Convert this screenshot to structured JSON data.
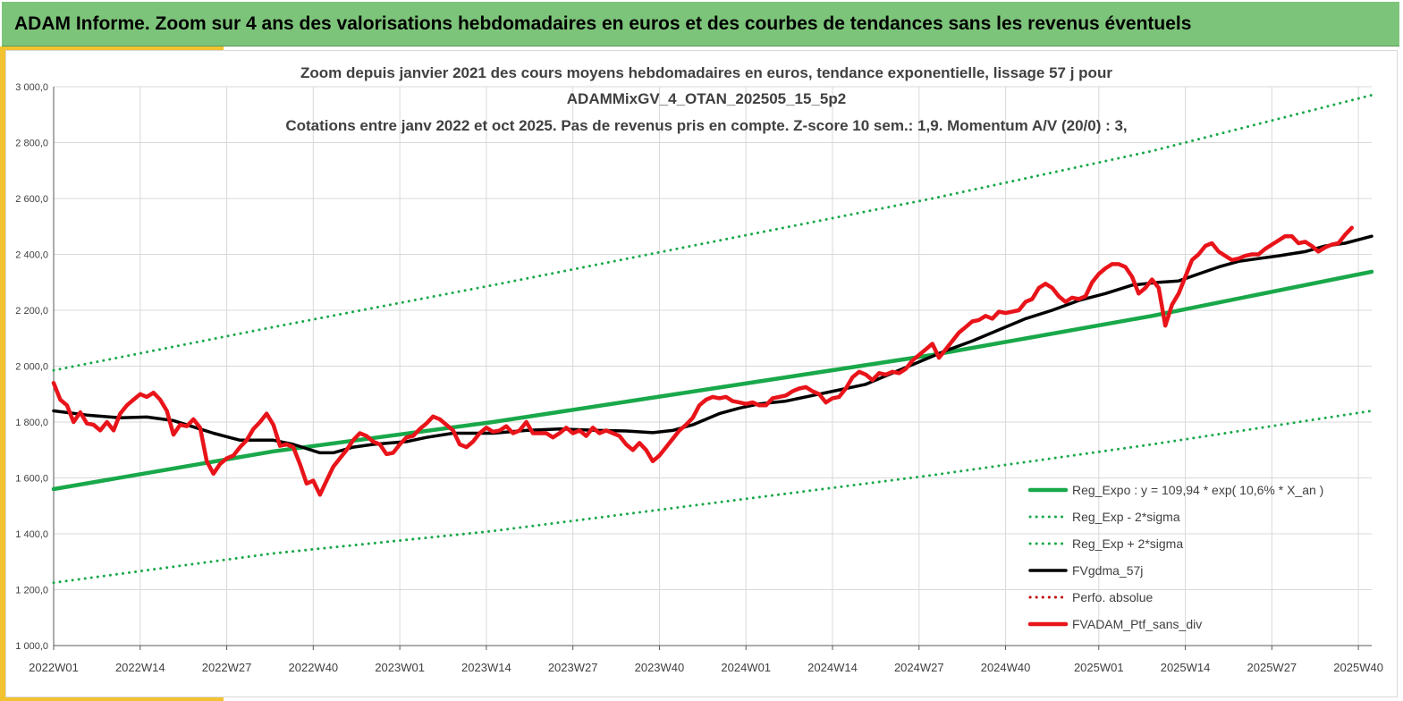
{
  "banner": {
    "title": "ADAM Informe. Zoom sur 4 ans des valorisations hebdomadaires en euros et des courbes de tendances sans les revenus éventuels"
  },
  "colors": {
    "banner_bg": "#7cc47a",
    "accent": "#f2c230",
    "trend_green": "#19a84a",
    "ma_black": "#000000",
    "price_red": "#e8141a",
    "grid": "#d9d9d9"
  },
  "chart_data": {
    "type": "line",
    "title_lines": [
      "Zoom depuis janvier 2021 des cours moyens hebdomadaires  en euros, tendance exponentielle, lissage 57 j pour",
      "ADAMMixGV_4_OTAN_202505_15_5p2",
      "Cotations entre janv 2022 et oct 2025. Pas de revenus pris en compte. Z-score 10 sem.: 1,9. Momentum A/V (20/0) : 3,"
    ],
    "ylim": [
      1000,
      3000
    ],
    "yticks": [
      {
        "value": 1000,
        "label": "1 000,0"
      },
      {
        "value": 1200,
        "label": "1 200,0"
      },
      {
        "value": 1400,
        "label": "1 400,0"
      },
      {
        "value": 1600,
        "label": "1 600,0"
      },
      {
        "value": 1800,
        "label": "1 800,0"
      },
      {
        "value": 2000,
        "label": "2 000,0"
      },
      {
        "value": 2200,
        "label": "2 200,0"
      },
      {
        "value": 2400,
        "label": "2 400,0"
      },
      {
        "value": 2600,
        "label": "2 600,0"
      },
      {
        "value": 2800,
        "label": "2 800,0"
      },
      {
        "value": 3000,
        "label": "3 000,0"
      }
    ],
    "xlim": [
      0,
      198
    ],
    "xticks": [
      {
        "week": 0,
        "label": "2022W01"
      },
      {
        "week": 13,
        "label": "2022W14"
      },
      {
        "week": 26,
        "label": "2022W27"
      },
      {
        "week": 39,
        "label": "2022W40"
      },
      {
        "week": 52,
        "label": "2023W01"
      },
      {
        "week": 65,
        "label": "2023W14"
      },
      {
        "week": 78,
        "label": "2023W27"
      },
      {
        "week": 91,
        "label": "2023W40"
      },
      {
        "week": 104,
        "label": "2024W01"
      },
      {
        "week": 117,
        "label": "2024W14"
      },
      {
        "week": 130,
        "label": "2024W27"
      },
      {
        "week": 143,
        "label": "2024W40"
      },
      {
        "week": 157,
        "label": "2025W01"
      },
      {
        "week": 170,
        "label": "2025W14"
      },
      {
        "week": 183,
        "label": "2025W27"
      },
      {
        "week": 196,
        "label": "2025W40"
      }
    ],
    "series": [
      {
        "name": "Reg_Expo : y = 109,94 * exp( 10,6% *  X_an )",
        "style": "solid",
        "color": "#19a84a",
        "width": 4.5,
        "points": [
          [
            0,
            1560
          ],
          [
            33,
            1695
          ],
          [
            66,
            1800
          ],
          [
            99,
            1920
          ],
          [
            132,
            2040
          ],
          [
            165,
            2180
          ],
          [
            198,
            2338
          ]
        ]
      },
      {
        "name": "Reg_Exp - 2*sigma",
        "style": "dotted",
        "color": "#19a84a",
        "width": 3,
        "points": [
          [
            0,
            1225
          ],
          [
            33,
            1330
          ],
          [
            66,
            1410
          ],
          [
            99,
            1510
          ],
          [
            132,
            1610
          ],
          [
            165,
            1720
          ],
          [
            198,
            1840
          ]
        ]
      },
      {
        "name": "Reg_Exp + 2*sigma",
        "style": "dotted",
        "color": "#19a84a",
        "width": 3,
        "points": [
          [
            0,
            1985
          ],
          [
            33,
            2140
          ],
          [
            66,
            2290
          ],
          [
            99,
            2445
          ],
          [
            132,
            2600
          ],
          [
            165,
            2770
          ],
          [
            198,
            2970
          ]
        ]
      },
      {
        "name": "FVgdma_57j",
        "style": "solid",
        "color": "#000000",
        "width": 3.5,
        "points": [
          [
            0,
            1840
          ],
          [
            5,
            1825
          ],
          [
            10,
            1815
          ],
          [
            14,
            1818
          ],
          [
            18,
            1805
          ],
          [
            22,
            1775
          ],
          [
            24,
            1760
          ],
          [
            28,
            1735
          ],
          [
            33,
            1735
          ],
          [
            36,
            1720
          ],
          [
            40,
            1690
          ],
          [
            42,
            1690
          ],
          [
            45,
            1710
          ],
          [
            48,
            1720
          ],
          [
            53,
            1730
          ],
          [
            56,
            1745
          ],
          [
            60,
            1760
          ],
          [
            66,
            1760
          ],
          [
            71,
            1770
          ],
          [
            76,
            1775
          ],
          [
            82,
            1770
          ],
          [
            86,
            1768
          ],
          [
            90,
            1762
          ],
          [
            93,
            1770
          ],
          [
            96,
            1790
          ],
          [
            100,
            1830
          ],
          [
            103,
            1850
          ],
          [
            106,
            1865
          ],
          [
            110,
            1875
          ],
          [
            114,
            1895
          ],
          [
            118,
            1915
          ],
          [
            122,
            1935
          ],
          [
            126,
            1975
          ],
          [
            130,
            2015
          ],
          [
            134,
            2055
          ],
          [
            138,
            2090
          ],
          [
            142,
            2130
          ],
          [
            146,
            2170
          ],
          [
            150,
            2200
          ],
          [
            154,
            2235
          ],
          [
            158,
            2260
          ],
          [
            162,
            2290
          ],
          [
            166,
            2300
          ],
          [
            169,
            2305
          ],
          [
            172,
            2330
          ],
          [
            175,
            2355
          ],
          [
            178,
            2375
          ],
          [
            181,
            2385
          ],
          [
            184,
            2395
          ],
          [
            188,
            2410
          ],
          [
            191,
            2430
          ],
          [
            194,
            2440
          ],
          [
            198,
            2465
          ]
        ]
      },
      {
        "name": "Perfo. absolue",
        "style": "dotted",
        "color": "#c00000",
        "width": 3,
        "points": []
      },
      {
        "name": "FVADAM_Ptf_sans_div",
        "style": "solid",
        "color": "#e8141a",
        "width": 4.5,
        "points": [
          [
            0,
            1940
          ],
          [
            1,
            1880
          ],
          [
            2,
            1860
          ],
          [
            3,
            1800
          ],
          [
            4,
            1835
          ],
          [
            5,
            1795
          ],
          [
            6,
            1790
          ],
          [
            7,
            1770
          ],
          [
            8,
            1800
          ],
          [
            9,
            1770
          ],
          [
            10,
            1830
          ],
          [
            11,
            1860
          ],
          [
            12,
            1880
          ],
          [
            13,
            1900
          ],
          [
            14,
            1890
          ],
          [
            15,
            1905
          ],
          [
            16,
            1880
          ],
          [
            17,
            1840
          ],
          [
            18,
            1755
          ],
          [
            19,
            1790
          ],
          [
            20,
            1785
          ],
          [
            21,
            1810
          ],
          [
            22,
            1780
          ],
          [
            23,
            1660
          ],
          [
            24,
            1615
          ],
          [
            25,
            1650
          ],
          [
            26,
            1670
          ],
          [
            27,
            1680
          ],
          [
            28,
            1710
          ],
          [
            29,
            1735
          ],
          [
            30,
            1775
          ],
          [
            31,
            1800
          ],
          [
            32,
            1830
          ],
          [
            33,
            1790
          ],
          [
            34,
            1715
          ],
          [
            35,
            1720
          ],
          [
            36,
            1710
          ],
          [
            37,
            1650
          ],
          [
            38,
            1580
          ],
          [
            39,
            1590
          ],
          [
            40,
            1540
          ],
          [
            41,
            1590
          ],
          [
            42,
            1640
          ],
          [
            43,
            1670
          ],
          [
            44,
            1700
          ],
          [
            45,
            1735
          ],
          [
            46,
            1760
          ],
          [
            47,
            1750
          ],
          [
            48,
            1730
          ],
          [
            49,
            1720
          ],
          [
            50,
            1685
          ],
          [
            51,
            1690
          ],
          [
            52,
            1720
          ],
          [
            53,
            1745
          ],
          [
            54,
            1750
          ],
          [
            55,
            1775
          ],
          [
            56,
            1795
          ],
          [
            57,
            1820
          ],
          [
            58,
            1810
          ],
          [
            59,
            1790
          ],
          [
            60,
            1770
          ],
          [
            61,
            1720
          ],
          [
            62,
            1710
          ],
          [
            63,
            1730
          ],
          [
            64,
            1760
          ],
          [
            65,
            1780
          ],
          [
            66,
            1765
          ],
          [
            67,
            1770
          ],
          [
            68,
            1785
          ],
          [
            69,
            1760
          ],
          [
            70,
            1770
          ],
          [
            71,
            1800
          ],
          [
            72,
            1760
          ],
          [
            73,
            1760
          ],
          [
            74,
            1760
          ],
          [
            75,
            1745
          ],
          [
            76,
            1760
          ],
          [
            77,
            1780
          ],
          [
            78,
            1760
          ],
          [
            79,
            1770
          ],
          [
            80,
            1750
          ],
          [
            81,
            1780
          ],
          [
            82,
            1760
          ],
          [
            83,
            1770
          ],
          [
            84,
            1760
          ],
          [
            85,
            1750
          ],
          [
            86,
            1720
          ],
          [
            87,
            1700
          ],
          [
            88,
            1725
          ],
          [
            89,
            1700
          ],
          [
            90,
            1660
          ],
          [
            91,
            1680
          ],
          [
            92,
            1710
          ],
          [
            93,
            1740
          ],
          [
            94,
            1770
          ],
          [
            95,
            1790
          ],
          [
            96,
            1815
          ],
          [
            97,
            1860
          ],
          [
            98,
            1880
          ],
          [
            99,
            1890
          ],
          [
            100,
            1885
          ],
          [
            101,
            1890
          ],
          [
            102,
            1875
          ],
          [
            103,
            1870
          ],
          [
            104,
            1865
          ],
          [
            105,
            1870
          ],
          [
            106,
            1860
          ],
          [
            107,
            1860
          ],
          [
            108,
            1885
          ],
          [
            109,
            1890
          ],
          [
            110,
            1895
          ],
          [
            111,
            1910
          ],
          [
            112,
            1920
          ],
          [
            113,
            1925
          ],
          [
            114,
            1910
          ],
          [
            115,
            1900
          ],
          [
            116,
            1870
          ],
          [
            117,
            1885
          ],
          [
            118,
            1890
          ],
          [
            119,
            1920
          ],
          [
            120,
            1960
          ],
          [
            121,
            1980
          ],
          [
            122,
            1970
          ],
          [
            123,
            1950
          ],
          [
            124,
            1975
          ],
          [
            125,
            1970
          ],
          [
            126,
            1980
          ],
          [
            127,
            1975
          ],
          [
            128,
            1990
          ],
          [
            129,
            2020
          ],
          [
            130,
            2040
          ],
          [
            131,
            2060
          ],
          [
            132,
            2080
          ],
          [
            133,
            2030
          ],
          [
            134,
            2060
          ],
          [
            135,
            2090
          ],
          [
            136,
            2120
          ],
          [
            137,
            2140
          ],
          [
            138,
            2160
          ],
          [
            139,
            2165
          ],
          [
            140,
            2180
          ],
          [
            141,
            2170
          ],
          [
            142,
            2195
          ],
          [
            143,
            2190
          ],
          [
            144,
            2195
          ],
          [
            145,
            2200
          ],
          [
            146,
            2230
          ],
          [
            147,
            2240
          ],
          [
            148,
            2280
          ],
          [
            149,
            2295
          ],
          [
            150,
            2280
          ],
          [
            151,
            2250
          ],
          [
            152,
            2230
          ],
          [
            153,
            2245
          ],
          [
            154,
            2240
          ],
          [
            155,
            2250
          ],
          [
            156,
            2300
          ],
          [
            157,
            2330
          ],
          [
            158,
            2350
          ],
          [
            159,
            2365
          ],
          [
            160,
            2365
          ],
          [
            161,
            2355
          ],
          [
            162,
            2320
          ],
          [
            163,
            2260
          ],
          [
            164,
            2280
          ],
          [
            165,
            2310
          ],
          [
            166,
            2280
          ],
          [
            167,
            2145
          ],
          [
            168,
            2220
          ],
          [
            169,
            2260
          ],
          [
            170,
            2320
          ],
          [
            171,
            2380
          ],
          [
            172,
            2400
          ],
          [
            173,
            2430
          ],
          [
            174,
            2440
          ],
          [
            175,
            2410
          ],
          [
            176,
            2395
          ],
          [
            177,
            2380
          ],
          [
            178,
            2385
          ],
          [
            179,
            2395
          ],
          [
            180,
            2400
          ],
          [
            181,
            2400
          ],
          [
            182,
            2420
          ],
          [
            183,
            2435
          ],
          [
            184,
            2450
          ],
          [
            185,
            2465
          ],
          [
            186,
            2465
          ],
          [
            187,
            2440
          ],
          [
            188,
            2445
          ],
          [
            189,
            2430
          ],
          [
            190,
            2410
          ],
          [
            191,
            2425
          ],
          [
            192,
            2435
          ],
          [
            193,
            2440
          ],
          [
            194,
            2470
          ],
          [
            195,
            2495
          ]
        ]
      }
    ],
    "legend_position": "bottom-right",
    "grid": true
  }
}
